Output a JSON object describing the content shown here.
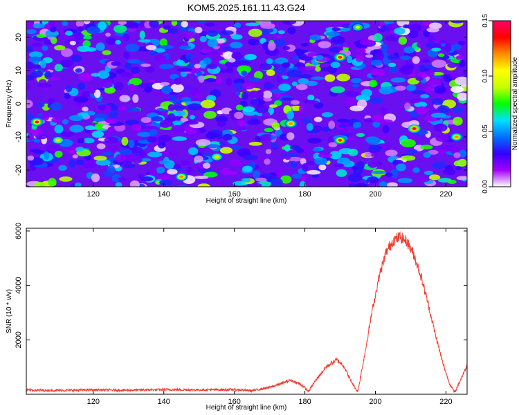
{
  "figure_title": "KOM5.2025.161.11.43.G24",
  "colors": {
    "line": "#f23a2e",
    "axis": "#000000",
    "colorbar_stops": [
      "#ffffff",
      "#a200ff",
      "#3300ff",
      "#0070ff",
      "#00e0ff",
      "#00ff00",
      "#c8ff00",
      "#ffff00",
      "#ff8c00",
      "#ff0000",
      "#ff0066"
    ]
  },
  "chart_data": [
    {
      "type": "heatmap",
      "title": "KOM5.2025.161.11.43.G24",
      "xlabel": "Height of straight line (km)",
      "ylabel": "Frequency (Hz)",
      "xlim": [
        101,
        226
      ],
      "ylim": [
        -25,
        25
      ],
      "x_ticks": [
        120,
        140,
        160,
        180,
        200,
        220
      ],
      "y_ticks": [
        -20,
        -10,
        0,
        10,
        20
      ],
      "colorbar": {
        "label": "Normalized spectral amplitude",
        "range": [
          0,
          0.15
        ],
        "ticks": [
          "0.00",
          "0.05",
          "0.10",
          "0.15"
        ]
      },
      "peaks": [
        {
          "x": 211,
          "y": -7.5,
          "value": 0.15
        },
        {
          "x": 104,
          "y": -5.5,
          "value": 0.14
        },
        {
          "x": 190,
          "y": 14,
          "value": 0.13
        },
        {
          "x": 190,
          "y": -11,
          "value": 0.13
        },
        {
          "x": 145,
          "y": -22,
          "value": 0.12
        },
        {
          "x": 176,
          "y": -6,
          "value": 0.12
        },
        {
          "x": 223,
          "y": -10,
          "value": 0.12
        },
        {
          "x": 155,
          "y": -16,
          "value": 0.11
        },
        {
          "x": 110,
          "y": -11,
          "value": 0.11
        },
        {
          "x": 195,
          "y": 23,
          "value": 0.1
        }
      ]
    },
    {
      "type": "line",
      "xlabel": "Height of straight line (km)",
      "ylabel": "SNR (10 * v/v)",
      "xlim": [
        101,
        226
      ],
      "ylim": [
        0,
        6100
      ],
      "x_ticks": [
        120,
        140,
        160,
        180,
        200,
        220
      ],
      "y_ticks": [
        2000,
        4000,
        6000
      ],
      "x": [
        101,
        110,
        120,
        130,
        140,
        150,
        160,
        165,
        170,
        173,
        176,
        179,
        181,
        183,
        186,
        189,
        191,
        193,
        195,
        197,
        199,
        201,
        203,
        205,
        207,
        209,
        211,
        213,
        215,
        217,
        219,
        221,
        222.5,
        224,
        226
      ],
      "y": [
        150,
        140,
        160,
        150,
        170,
        160,
        170,
        130,
        250,
        380,
        520,
        350,
        100,
        500,
        1000,
        1270,
        1050,
        500,
        80,
        1500,
        3000,
        4300,
        5200,
        5650,
        5780,
        5600,
        5100,
        4300,
        3300,
        2200,
        1200,
        400,
        60,
        500,
        1050
      ]
    }
  ]
}
